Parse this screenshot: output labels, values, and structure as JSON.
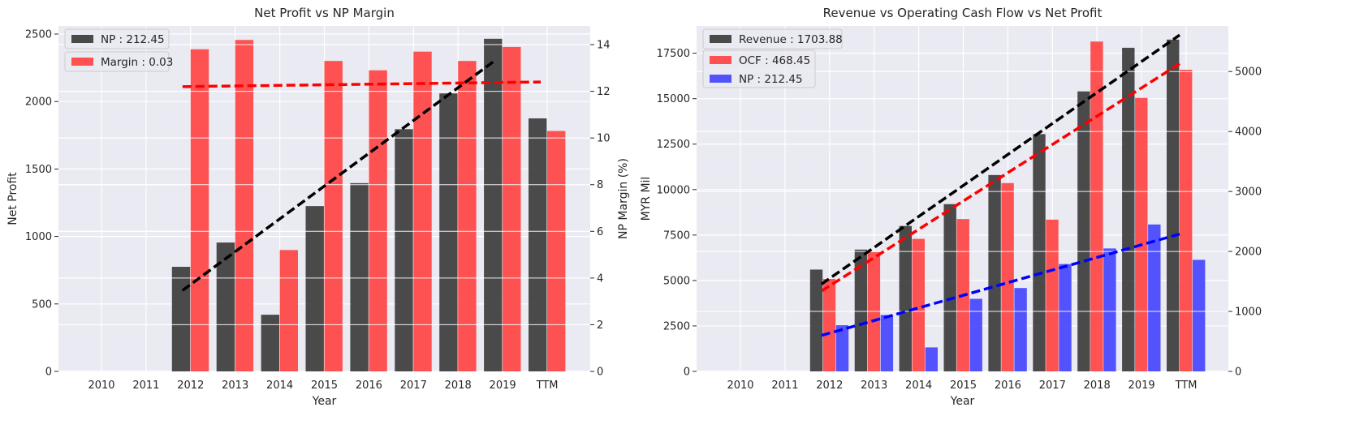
{
  "chart_data": [
    {
      "type": "bar",
      "title": "Net Profit vs NP Margin",
      "xlabel": "Year",
      "ylabel": "Net Profit",
      "y2label": "NP Margin (%)",
      "categories": [
        "2010",
        "2011",
        "2012",
        "2013",
        "2014",
        "2015",
        "2016",
        "2017",
        "2018",
        "2019",
        "TTM"
      ],
      "ylim": [
        0,
        2560
      ],
      "yticks": [
        0,
        500,
        1000,
        1500,
        2000,
        2500
      ],
      "y2lim": [
        0,
        14.8
      ],
      "y2ticks": [
        0,
        2,
        4,
        6,
        8,
        10,
        12,
        14
      ],
      "grid": true,
      "legend_position": "top-left",
      "series": [
        {
          "name": "NP : 212.45",
          "axis": "left",
          "color": "#333333",
          "values": [
            null,
            null,
            775,
            955,
            420,
            1225,
            1395,
            1795,
            2060,
            2465,
            1875
          ]
        },
        {
          "name": "Margin : 0.03",
          "axis": "right",
          "color": "#ff3b3b",
          "values": [
            null,
            null,
            13.8,
            14.2,
            5.2,
            13.3,
            12.9,
            13.7,
            13.3,
            13.9,
            10.3
          ]
        }
      ],
      "trendlines": [
        {
          "series": "NP : 212.45",
          "color": "#000000",
          "from_category": "2012",
          "to_category": "2019",
          "start": 600,
          "end": 2310
        },
        {
          "series": "Margin : 0.03",
          "color": "#ff0000",
          "from_category": "2012",
          "to_category": "TTM",
          "start": 12.2,
          "end": 12.4
        }
      ]
    },
    {
      "type": "bar",
      "title": "Revenue vs Operating Cash Flow vs Net Profit",
      "xlabel": "Year",
      "ylabel": "MYR Mil",
      "categories": [
        "2010",
        "2011",
        "2012",
        "2013",
        "2014",
        "2015",
        "2016",
        "2017",
        "2018",
        "2019",
        "TTM"
      ],
      "ylim": [
        0,
        19000
      ],
      "yticks": [
        0,
        2500,
        5000,
        7500,
        10000,
        12500,
        15000,
        17500
      ],
      "y2lim": [
        0,
        5760
      ],
      "y2ticks": [
        0,
        1000,
        2000,
        3000,
        4000,
        5000
      ],
      "grid": true,
      "legend_position": "top-left",
      "series": [
        {
          "name": "Revenue : 1703.88",
          "axis": "left",
          "color": "#333333",
          "values": [
            null,
            null,
            5600,
            6700,
            8000,
            9200,
            10800,
            13050,
            15400,
            17800,
            18250
          ]
        },
        {
          "name": "OCF : 468.45",
          "axis": "right",
          "color": "#ff3b3b",
          "values": [
            null,
            null,
            1540,
            1990,
            2210,
            2540,
            3140,
            2530,
            5500,
            4560,
            5030
          ]
        },
        {
          "name": "NP : 212.45",
          "axis": "right",
          "color": "#3d3dff",
          "values": [
            null,
            null,
            770,
            940,
            400,
            1210,
            1390,
            1790,
            2050,
            2450,
            1860
          ]
        }
      ],
      "trendlines": [
        {
          "series": "Revenue : 1703.88",
          "color": "#000000",
          "from_category": "2012",
          "to_category": "TTM",
          "start": 4800,
          "end": 18500
        },
        {
          "series": "OCF : 468.45",
          "color": "#ff0000",
          "from_category": "2012",
          "to_category": "TTM",
          "start": 1340,
          "end": 5130
        },
        {
          "series": "NP : 212.45",
          "color": "#0000ff",
          "from_category": "2012",
          "to_category": "TTM",
          "start": 600,
          "end": 2290
        }
      ]
    }
  ]
}
